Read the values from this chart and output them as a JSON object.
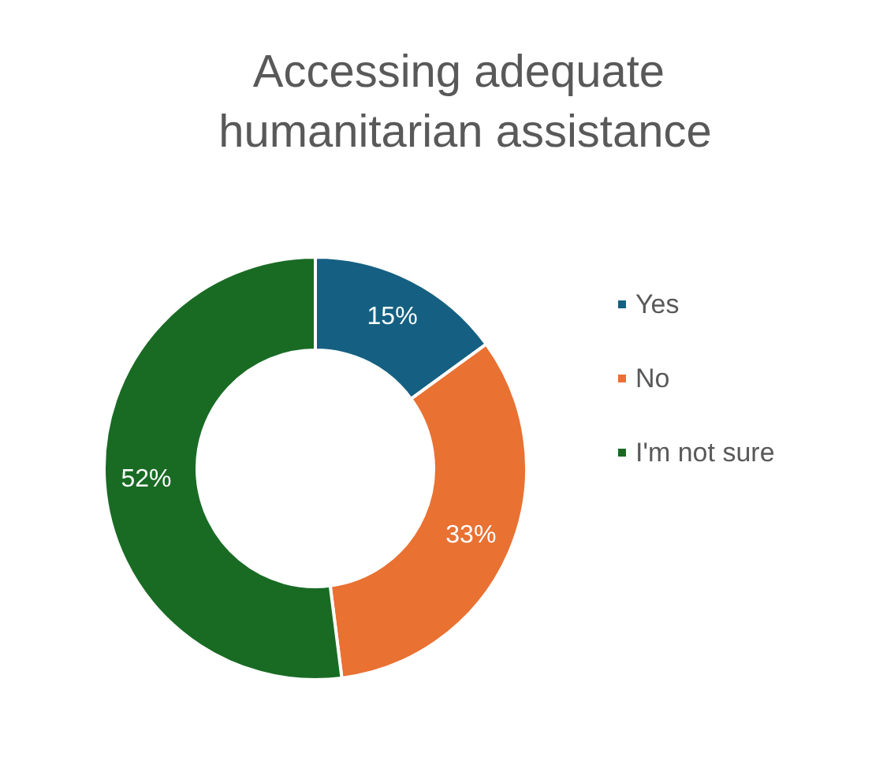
{
  "chart_data": {
    "type": "donut",
    "title": "Accessing adequate humanitarian assistance",
    "categories": [
      "Yes",
      "No",
      "I'm not sure"
    ],
    "values": [
      15,
      33,
      52
    ],
    "colors": [
      "#156082",
      "#e97132",
      "#196b24"
    ],
    "value_labels": [
      "15%",
      "33%",
      "52%"
    ],
    "legend": "right"
  }
}
